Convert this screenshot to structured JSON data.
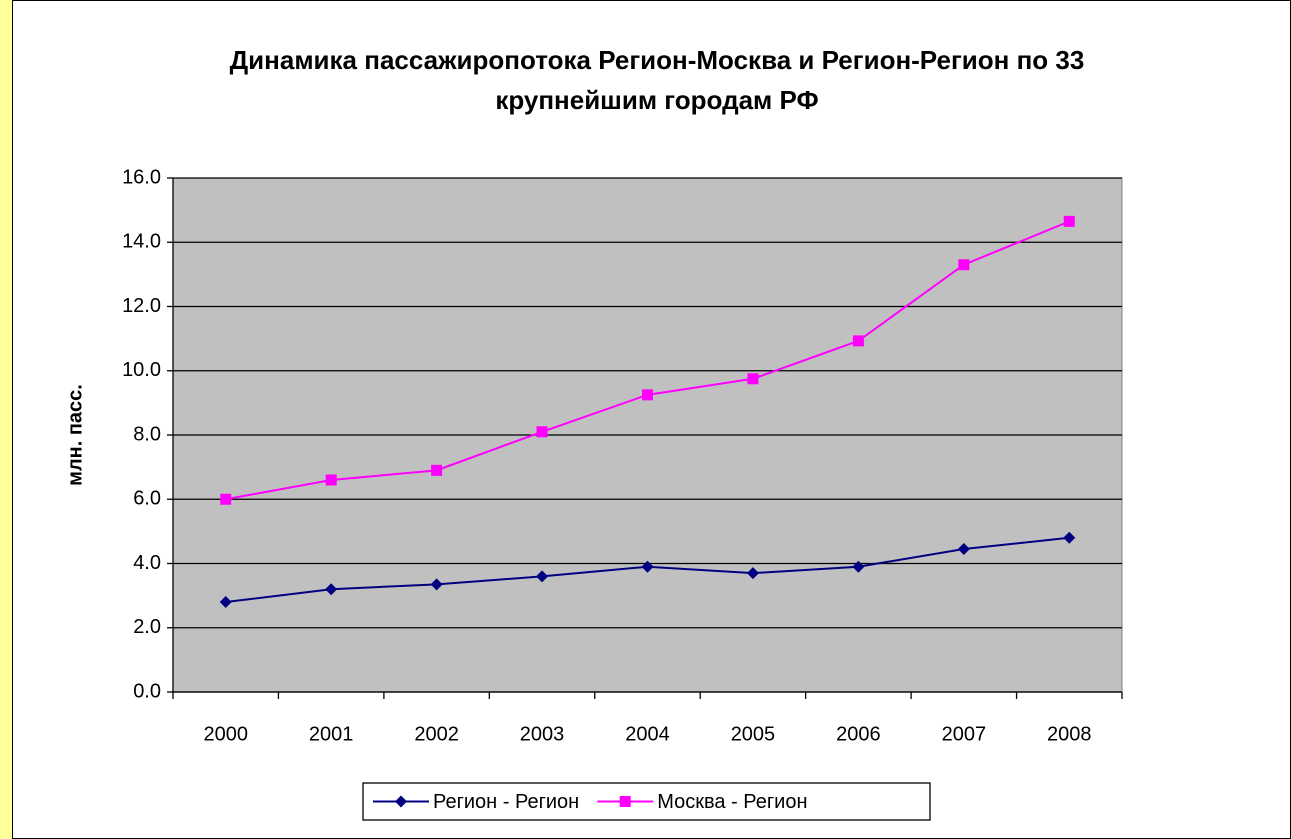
{
  "chart_data": {
    "type": "line",
    "title": "Динамика пассажиропотока Регион-Москва и Регион-Регион по 33 крупнейшим городам РФ",
    "y_label": "млн. пасс.",
    "categories": [
      "2000",
      "2001",
      "2002",
      "2003",
      "2004",
      "2005",
      "2006",
      "2007",
      "2008"
    ],
    "series": [
      {
        "name": "Регион - Регион",
        "color": "#000080",
        "marker": "diamond",
        "values": [
          2.8,
          3.2,
          3.35,
          3.6,
          3.9,
          3.7,
          3.9,
          4.45,
          4.8
        ]
      },
      {
        "name": "Москва - Регион",
        "color": "#ff00ff",
        "marker": "square",
        "values": [
          6.0,
          6.6,
          6.9,
          8.1,
          9.25,
          9.75,
          10.93,
          13.3,
          14.65
        ]
      }
    ],
    "ylim": [
      0,
      16
    ],
    "yticks": [
      {
        "value": 0,
        "label": "0.0"
      },
      {
        "value": 2,
        "label": "2.0"
      },
      {
        "value": 4,
        "label": "4.0"
      },
      {
        "value": 6,
        "label": "6.0"
      },
      {
        "value": 8,
        "label": "8.0"
      },
      {
        "value": 10,
        "label": "10.0"
      },
      {
        "value": 12,
        "label": "12.0"
      },
      {
        "value": 14,
        "label": "14.0"
      },
      {
        "value": 16,
        "label": "16.0"
      }
    ],
    "grid": true,
    "plot_background": "#c0c0c0",
    "legend": "bottom"
  }
}
